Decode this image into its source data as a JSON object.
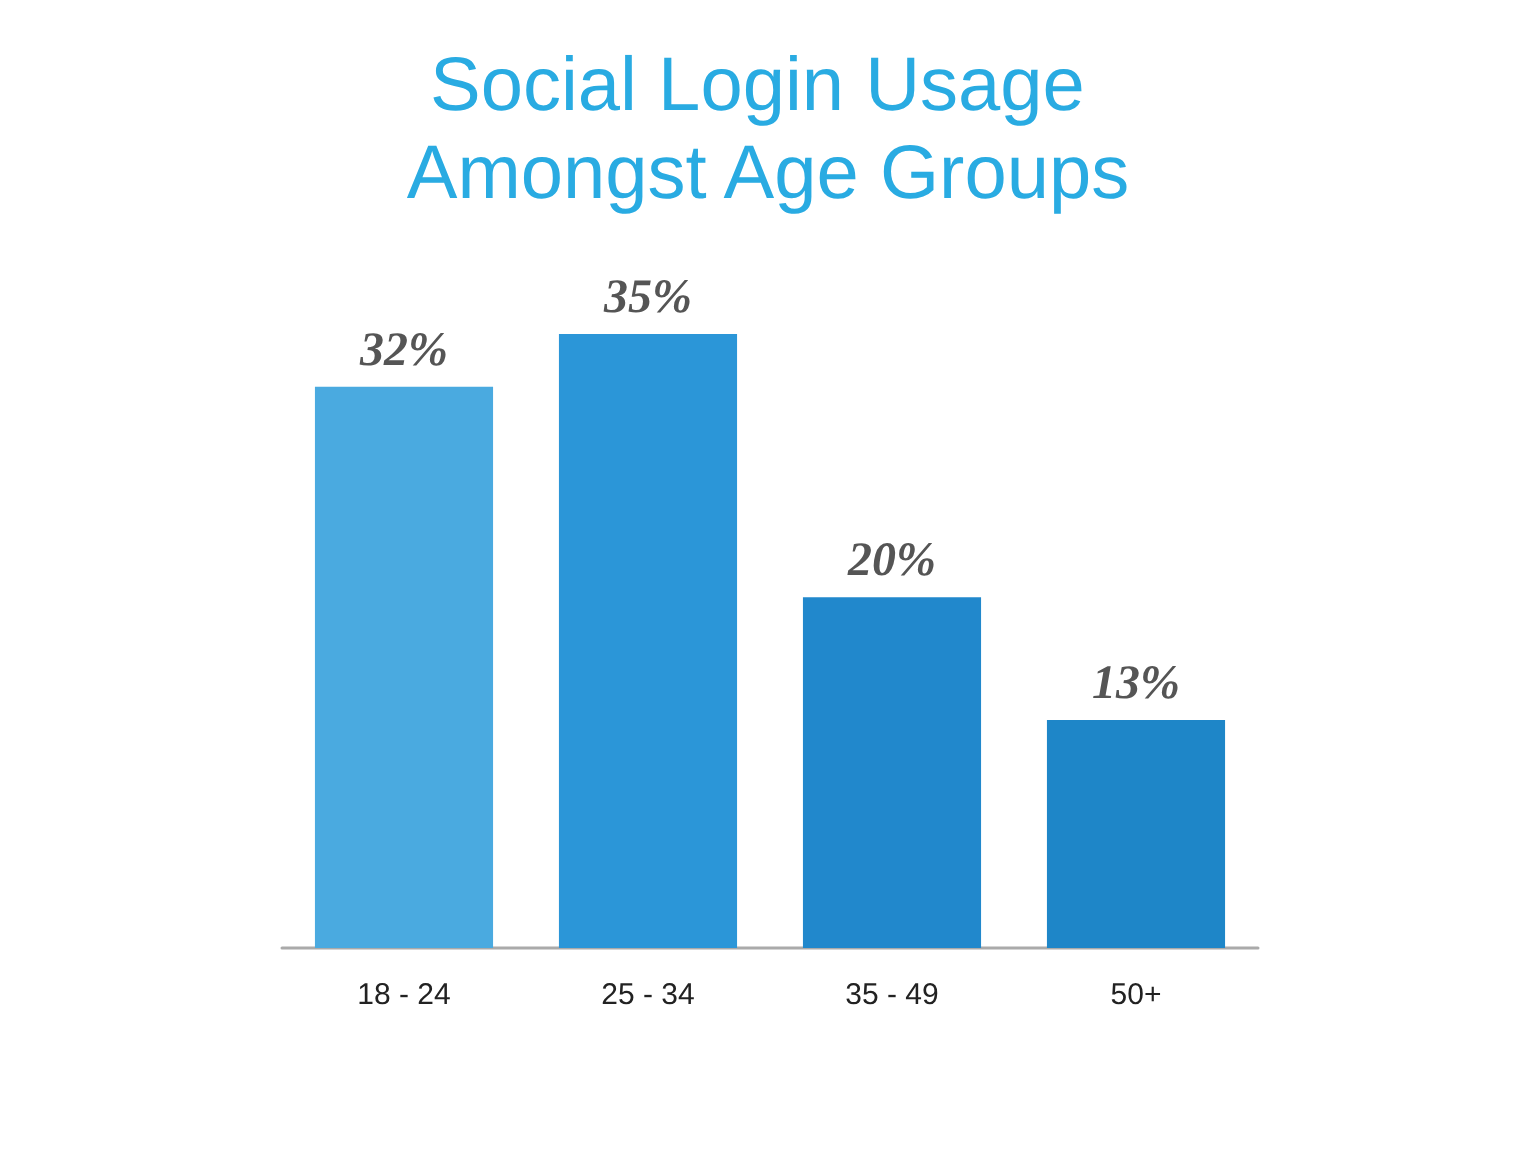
{
  "chart_data": {
    "type": "bar",
    "title": "Social Login Usage Amongst Age Groups",
    "categories": [
      "18 - 24",
      "25 - 34",
      "35 - 49",
      "50+"
    ],
    "values": [
      32,
      35,
      20,
      13
    ],
    "colors": [
      "#4aaae0",
      "#2b96d8",
      "#2188cc",
      "#1e86c8"
    ],
    "value_labels": [
      "32%",
      "35%",
      "20%",
      "13%"
    ]
  }
}
